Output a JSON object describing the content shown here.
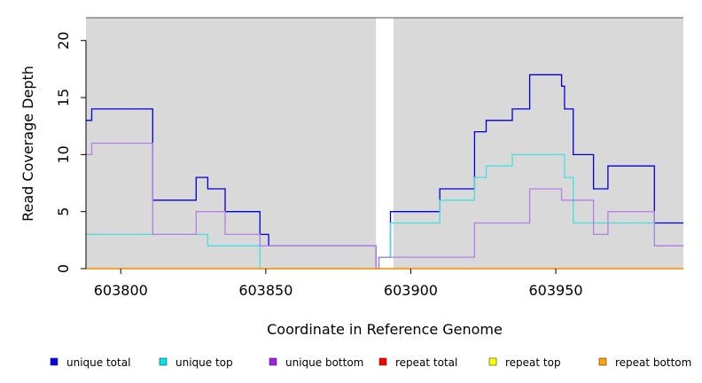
{
  "chart_data": {
    "type": "line",
    "step": true,
    "xlabel": "Coordinate in Reference Genome",
    "ylabel": "Read Coverage Depth",
    "xlim": [
      603788,
      603994
    ],
    "ylim": [
      0,
      22
    ],
    "x_ticks": [
      603800,
      603850,
      603900,
      603950
    ],
    "y_ticks": [
      0,
      5,
      10,
      15,
      20
    ],
    "grid": false,
    "background": "#d9d9d9",
    "gaps": [
      [
        603888,
        603894
      ]
    ],
    "legend_position": "bottom",
    "series": [
      {
        "name": "unique total",
        "color": "#0000dd",
        "points": [
          [
            603788,
            13
          ],
          [
            603790,
            14
          ],
          [
            603811,
            6
          ],
          [
            603826,
            8
          ],
          [
            603830,
            7
          ],
          [
            603836,
            5
          ],
          [
            603848,
            3
          ],
          [
            603851,
            2
          ],
          [
            603888,
            0
          ],
          [
            603889,
            1
          ],
          [
            603893,
            5
          ],
          [
            603910,
            7
          ],
          [
            603922,
            12
          ],
          [
            603926,
            13
          ],
          [
            603935,
            14
          ],
          [
            603941,
            17
          ],
          [
            603952,
            16
          ],
          [
            603953,
            14
          ],
          [
            603956,
            10
          ],
          [
            603963,
            7
          ],
          [
            603968,
            9
          ],
          [
            603984,
            4
          ],
          [
            603994,
            4
          ]
        ]
      },
      {
        "name": "unique top",
        "color": "#44e0e0",
        "points": [
          [
            603788,
            3
          ],
          [
            603811,
            3
          ],
          [
            603830,
            2
          ],
          [
            603848,
            0
          ],
          [
            603888,
            0
          ],
          [
            603889,
            1
          ],
          [
            603893,
            4
          ],
          [
            603910,
            6
          ],
          [
            603922,
            8
          ],
          [
            603926,
            9
          ],
          [
            603935,
            10
          ],
          [
            603953,
            8
          ],
          [
            603956,
            4
          ],
          [
            603984,
            2
          ],
          [
            603994,
            2
          ]
        ]
      },
      {
        "name": "unique bottom",
        "color": "#b47ee8",
        "points": [
          [
            603788,
            10
          ],
          [
            603790,
            11
          ],
          [
            603811,
            3
          ],
          [
            603826,
            5
          ],
          [
            603836,
            3
          ],
          [
            603848,
            2
          ],
          [
            603888,
            0
          ],
          [
            603889,
            1
          ],
          [
            603922,
            4
          ],
          [
            603941,
            7
          ],
          [
            603952,
            6
          ],
          [
            603963,
            3
          ],
          [
            603968,
            5
          ],
          [
            603984,
            2
          ],
          [
            603994,
            2
          ]
        ]
      },
      {
        "name": "repeat total",
        "color": "#ff0000",
        "points": [
          [
            603788,
            0
          ],
          [
            603994,
            0
          ]
        ]
      },
      {
        "name": "repeat top",
        "color": "#ffff00",
        "points": [
          [
            603788,
            0
          ],
          [
            603994,
            0
          ]
        ]
      },
      {
        "name": "repeat bottom",
        "color": "#ff8c00",
        "points": [
          [
            603788,
            0
          ],
          [
            603994,
            0
          ]
        ]
      }
    ]
  },
  "legend": [
    {
      "label": "unique total",
      "fill": "#0000ee"
    },
    {
      "label": "unique top",
      "fill": "#00e5e5"
    },
    {
      "label": "unique bottom",
      "fill": "#a020f0"
    },
    {
      "label": "repeat total",
      "fill": "#ff0000"
    },
    {
      "label": "repeat top",
      "fill": "#ffff00"
    },
    {
      "label": "repeat bottom",
      "fill": "#ffa500"
    }
  ]
}
